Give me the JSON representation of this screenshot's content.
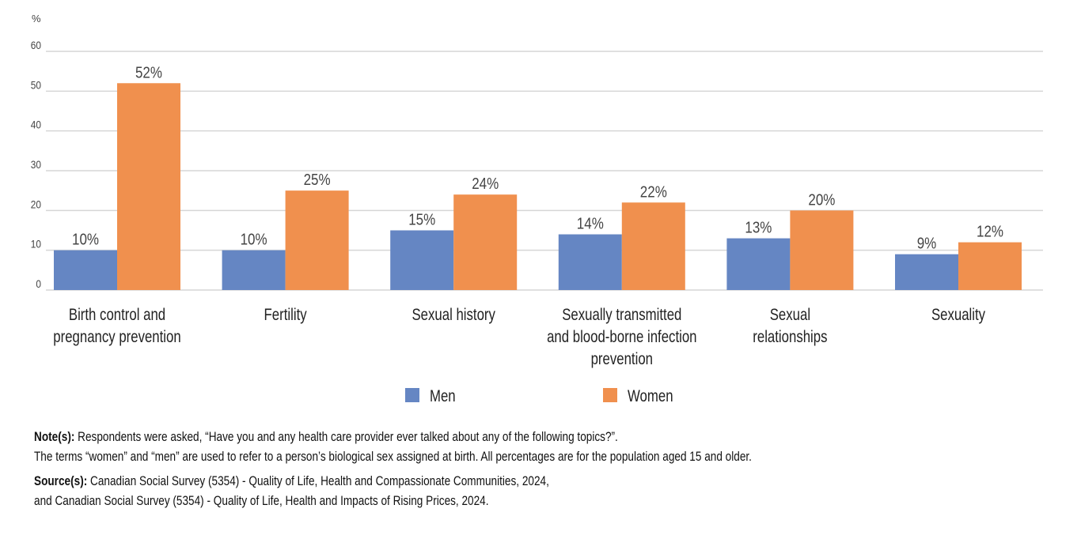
{
  "chart_data": {
    "type": "bar",
    "ylabel": "%",
    "ylim": [
      0,
      60
    ],
    "yticks": [
      0,
      10,
      20,
      30,
      40,
      50,
      60
    ],
    "grid": true,
    "legend_position": "bottom",
    "categories": [
      [
        "Birth control and",
        "pregnancy prevention"
      ],
      [
        "Fertility"
      ],
      [
        "Sexual history"
      ],
      [
        "Sexually transmitted",
        "and blood-borne infection",
        "prevention"
      ],
      [
        "Sexual",
        "relationships"
      ],
      [
        "Sexuality"
      ]
    ],
    "series": [
      {
        "name": "Men",
        "color": "#6586c3",
        "values": [
          10,
          10,
          15,
          14,
          13,
          9
        ],
        "labels": [
          "10%",
          "10%",
          "15%",
          "14%",
          "13%",
          "9%"
        ]
      },
      {
        "name": "Women",
        "color": "#f0904e",
        "values": [
          52,
          25,
          24,
          22,
          20,
          12
        ],
        "labels": [
          "52%",
          "25%",
          "24%",
          "22%",
          "20%",
          "12%"
        ]
      }
    ]
  },
  "notes": {
    "note_label": "Note(s):",
    "note_line1": " Respondents were asked, “Have you and any health care provider ever talked about any of the following topics?”.",
    "note_line2": "The terms “women” and “men” are used to refer to a person’s biological sex assigned at birth. All percentages are for the population aged 15 and older.",
    "source_label": "Source(s):",
    "source_line1": " Canadian Social Survey (5354) - Quality of Life, Health and Compassionate Communities, 2024,",
    "source_line2": "and Canadian Social Survey (5354) - Quality of Life, Health and Impacts of Rising Prices, 2024."
  }
}
